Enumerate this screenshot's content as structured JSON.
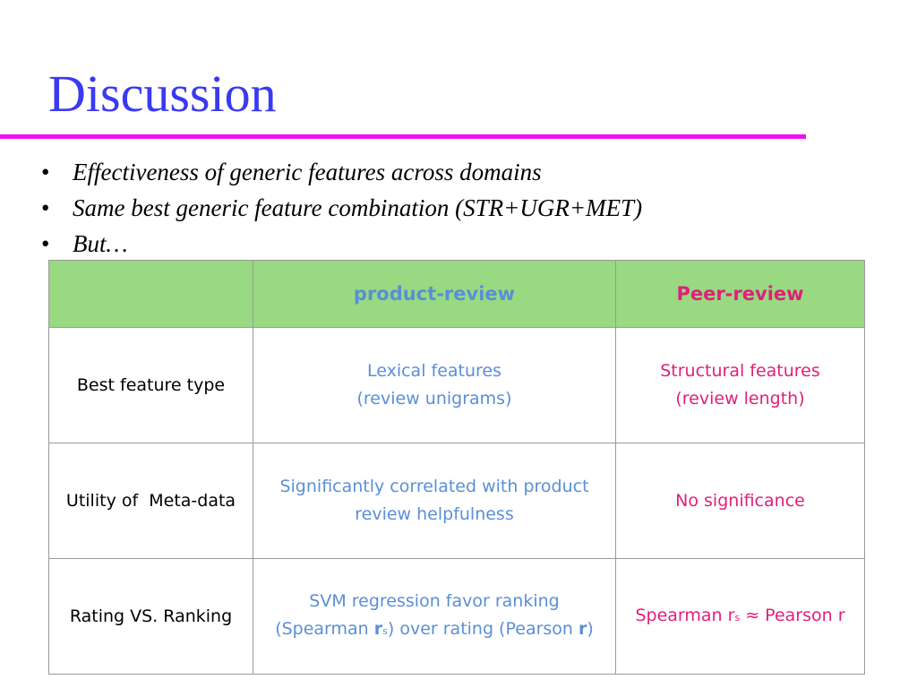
{
  "title": "Discussion",
  "bullets": [
    "Effectiveness of generic features across domains",
    "Same best generic feature combination (STR+UGR+MET)",
    "But…"
  ],
  "bullet_glyph": "•",
  "table": {
    "header": [
      "",
      "product-review",
      "Peer-review"
    ],
    "rows": [
      {
        "label": "Best feature type",
        "product_lines": [
          "Lexical features",
          "(review unigrams)"
        ],
        "peer_lines": [
          "Structural features",
          "(review length)"
        ]
      },
      {
        "label": "Utility of  Meta-data",
        "product_lines": [
          "Significantly correlated with product",
          "review helpfulness"
        ],
        "peer_lines": [
          "No significance"
        ]
      },
      {
        "label": "Rating VS. Ranking",
        "product_lines": [
          "SVM regression favor ranking"
        ],
        "product_line2": {
          "pre": "(Spearman ",
          "r": "r",
          "sub": "s",
          "mid": ") over rating (Pearson ",
          "r2": "r",
          "post": ")"
        },
        "peer_parts": {
          "pre": "Spearman r",
          "sub": "s",
          "post": " ≈ Pearson r"
        }
      }
    ]
  },
  "colors": {
    "title": "#3a3af0",
    "rule": "#ee11ee",
    "header_bg": "#98d982",
    "product": "#5a8fd6",
    "peer": "#e0207a"
  }
}
